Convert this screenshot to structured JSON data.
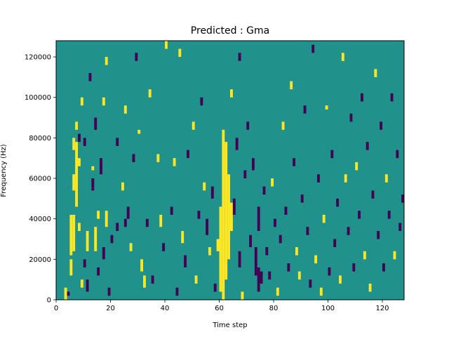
{
  "chart_data": {
    "type": "heatmap",
    "title": "Predicted : Gma",
    "xlabel": "Time step",
    "ylabel": "Frequency (Hz)",
    "xlim": [
      0,
      128
    ],
    "ylim": [
      0,
      128000
    ],
    "x_ticks": [
      0,
      20,
      40,
      60,
      80,
      100,
      120
    ],
    "x_tick_labels": [
      "0",
      "20",
      "40",
      "60",
      "80",
      "100",
      "120"
    ],
    "y_ticks": [
      0,
      20000,
      40000,
      60000,
      80000,
      100000,
      120000
    ],
    "y_tick_labels": [
      "0",
      "20000",
      "40000",
      "60000",
      "80000",
      "100000",
      "120000"
    ],
    "grid": false,
    "colormap": "viridis",
    "background_value": 0,
    "n_time_steps": 128,
    "n_freq_bins": 64,
    "freq_bin_hz": 2000,
    "colors": {
      "low": "#440154",
      "mid": "#21918c",
      "high": "#fde725"
    },
    "cells": [
      {
        "t": 3,
        "f0": 0,
        "f1": 6000,
        "v": 1
      },
      {
        "t": 4,
        "f0": 2000,
        "f1": 4000,
        "v": -1
      },
      {
        "t": 5,
        "f0": 12000,
        "f1": 20000,
        "v": 1
      },
      {
        "t": 5,
        "f0": 22000,
        "f1": 42000,
        "v": 1
      },
      {
        "t": 6,
        "f0": 24000,
        "f1": 42000,
        "v": 1
      },
      {
        "t": 6,
        "f0": 54000,
        "f1": 62000,
        "v": 1
      },
      {
        "t": 6,
        "f0": 74000,
        "f1": 80000,
        "v": 1
      },
      {
        "t": 7,
        "f0": 46000,
        "f1": 78000,
        "v": 1
      },
      {
        "t": 7,
        "f0": 84000,
        "f1": 88000,
        "v": 1
      },
      {
        "t": 8,
        "f0": 34000,
        "f1": 38000,
        "v": 1
      },
      {
        "t": 8,
        "f0": 66000,
        "f1": 70000,
        "v": 1
      },
      {
        "t": 8,
        "f0": 78000,
        "f1": 82000,
        "v": -1
      },
      {
        "t": 9,
        "f0": 6000,
        "f1": 10000,
        "v": 1
      },
      {
        "t": 9,
        "f0": 96000,
        "f1": 100000,
        "v": 1
      },
      {
        "t": 10,
        "f0": 76000,
        "f1": 80000,
        "v": -1
      },
      {
        "t": 10,
        "f0": 16000,
        "f1": 20000,
        "v": -1
      },
      {
        "t": 11,
        "f0": 4000,
        "f1": 10000,
        "v": -1
      },
      {
        "t": 11,
        "f0": 24000,
        "f1": 34000,
        "v": 1
      },
      {
        "t": 12,
        "f0": 108000,
        "f1": 112000,
        "v": -1
      },
      {
        "t": 13,
        "f0": 54000,
        "f1": 60000,
        "v": -1
      },
      {
        "t": 13,
        "f0": 64000,
        "f1": 66000,
        "v": 1
      },
      {
        "t": 14,
        "f0": 84000,
        "f1": 90000,
        "v": -1
      },
      {
        "t": 14,
        "f0": 24000,
        "f1": 36000,
        "v": 1
      },
      {
        "t": 15,
        "f0": 12000,
        "f1": 16000,
        "v": -1
      },
      {
        "t": 15,
        "f0": 40000,
        "f1": 44000,
        "v": 1
      },
      {
        "t": 16,
        "f0": 62000,
        "f1": 70000,
        "v": -1
      },
      {
        "t": 17,
        "f0": 20000,
        "f1": 26000,
        "v": -1
      },
      {
        "t": 17,
        "f0": 96000,
        "f1": 100000,
        "v": 1
      },
      {
        "t": 18,
        "f0": 36000,
        "f1": 44000,
        "v": 1
      },
      {
        "t": 18,
        "f0": 116000,
        "f1": 120000,
        "v": 1
      },
      {
        "t": 19,
        "f0": 2000,
        "f1": 6000,
        "v": -1
      },
      {
        "t": 20,
        "f0": 28000,
        "f1": 32000,
        "v": -1
      },
      {
        "t": 22,
        "f0": 34000,
        "f1": 38000,
        "v": -1
      },
      {
        "t": 22,
        "f0": 76000,
        "f1": 80000,
        "v": -1
      },
      {
        "t": 24,
        "f0": 54000,
        "f1": 58000,
        "v": 1
      },
      {
        "t": 25,
        "f0": 36000,
        "f1": 40000,
        "v": -1
      },
      {
        "t": 25,
        "f0": 92000,
        "f1": 96000,
        "v": 1
      },
      {
        "t": 26,
        "f0": 40000,
        "f1": 46000,
        "v": -1
      },
      {
        "t": 27,
        "f0": 24000,
        "f1": 28000,
        "v": 1
      },
      {
        "t": 28,
        "f0": 68000,
        "f1": 72000,
        "v": -1
      },
      {
        "t": 29,
        "f0": 118000,
        "f1": 122000,
        "v": -1
      },
      {
        "t": 30,
        "f0": 82000,
        "f1": 84000,
        "v": 1
      },
      {
        "t": 31,
        "f0": 14000,
        "f1": 20000,
        "v": 1
      },
      {
        "t": 32,
        "f0": 6000,
        "f1": 12000,
        "v": 1
      },
      {
        "t": 33,
        "f0": 36000,
        "f1": 40000,
        "v": -1
      },
      {
        "t": 34,
        "f0": 100000,
        "f1": 104000,
        "v": 1
      },
      {
        "t": 35,
        "f0": 8000,
        "f1": 12000,
        "v": -1
      },
      {
        "t": 37,
        "f0": 68000,
        "f1": 72000,
        "v": 1
      },
      {
        "t": 38,
        "f0": 36000,
        "f1": 42000,
        "v": 1
      },
      {
        "t": 39,
        "f0": 24000,
        "f1": 28000,
        "v": -1
      },
      {
        "t": 40,
        "f0": 124000,
        "f1": 128000,
        "v": 1
      },
      {
        "t": 42,
        "f0": 42000,
        "f1": 46000,
        "v": -1
      },
      {
        "t": 43,
        "f0": 66000,
        "f1": 70000,
        "v": 1
      },
      {
        "t": 44,
        "f0": 2000,
        "f1": 6000,
        "v": -1
      },
      {
        "t": 45,
        "f0": 120000,
        "f1": 124000,
        "v": 1
      },
      {
        "t": 46,
        "f0": 28000,
        "f1": 34000,
        "v": 1
      },
      {
        "t": 47,
        "f0": 16000,
        "f1": 22000,
        "v": -1
      },
      {
        "t": 48,
        "f0": 70000,
        "f1": 74000,
        "v": -1
      },
      {
        "t": 50,
        "f0": 84000,
        "f1": 88000,
        "v": 1
      },
      {
        "t": 51,
        "f0": 8000,
        "f1": 12000,
        "v": 1
      },
      {
        "t": 52,
        "f0": 40000,
        "f1": 44000,
        "v": -1
      },
      {
        "t": 53,
        "f0": 96000,
        "f1": 100000,
        "v": -1
      },
      {
        "t": 54,
        "f0": 54000,
        "f1": 58000,
        "v": 1
      },
      {
        "t": 55,
        "f0": 32000,
        "f1": 40000,
        "v": -1
      },
      {
        "t": 56,
        "f0": 22000,
        "f1": 26000,
        "v": 1
      },
      {
        "t": 57,
        "f0": 50000,
        "f1": 56000,
        "v": -1
      },
      {
        "t": 58,
        "f0": 4000,
        "f1": 8000,
        "v": -1
      },
      {
        "t": 59,
        "f0": 24000,
        "f1": 30000,
        "v": 1
      },
      {
        "t": 60,
        "f0": 4000,
        "f1": 46000,
        "v": 1
      },
      {
        "t": 61,
        "f0": 0,
        "f1": 84000,
        "v": 1
      },
      {
        "t": 62,
        "f0": 10000,
        "f1": 78000,
        "v": 1
      },
      {
        "t": 63,
        "f0": 20000,
        "f1": 62000,
        "v": 1
      },
      {
        "t": 64,
        "f0": 34000,
        "f1": 48000,
        "v": 1
      },
      {
        "t": 64,
        "f0": 100000,
        "f1": 104000,
        "v": 1
      },
      {
        "t": 65,
        "f0": 42000,
        "f1": 50000,
        "v": -1
      },
      {
        "t": 66,
        "f0": 74000,
        "f1": 80000,
        "v": -1
      },
      {
        "t": 67,
        "f0": 16000,
        "f1": 24000,
        "v": -1
      },
      {
        "t": 67,
        "f0": 118000,
        "f1": 122000,
        "v": -1
      },
      {
        "t": 68,
        "f0": 0,
        "f1": 4000,
        "v": 1
      },
      {
        "t": 69,
        "f0": 60000,
        "f1": 64000,
        "v": -1
      },
      {
        "t": 70,
        "f0": 84000,
        "f1": 88000,
        "v": -1
      },
      {
        "t": 71,
        "f0": 26000,
        "f1": 32000,
        "v": -1
      },
      {
        "t": 72,
        "f0": 64000,
        "f1": 70000,
        "v": -1
      },
      {
        "t": 73,
        "f0": 12000,
        "f1": 26000,
        "v": -1
      },
      {
        "t": 74,
        "f0": 4000,
        "f1": 16000,
        "v": -1
      },
      {
        "t": 74,
        "f0": 34000,
        "f1": 46000,
        "v": -1
      },
      {
        "t": 75,
        "f0": 8000,
        "f1": 14000,
        "v": -1
      },
      {
        "t": 76,
        "f0": 52000,
        "f1": 56000,
        "v": -1
      },
      {
        "t": 77,
        "f0": 22000,
        "f1": 26000,
        "v": -1
      },
      {
        "t": 78,
        "f0": 10000,
        "f1": 14000,
        "v": -1
      },
      {
        "t": 79,
        "f0": 56000,
        "f1": 60000,
        "v": 1
      },
      {
        "t": 80,
        "f0": 36000,
        "f1": 40000,
        "v": -1
      },
      {
        "t": 81,
        "f0": 2000,
        "f1": 6000,
        "v": 1
      },
      {
        "t": 82,
        "f0": 28000,
        "f1": 32000,
        "v": -1
      },
      {
        "t": 83,
        "f0": 84000,
        "f1": 88000,
        "v": 1
      },
      {
        "t": 84,
        "f0": 42000,
        "f1": 46000,
        "v": -1
      },
      {
        "t": 85,
        "f0": 14000,
        "f1": 18000,
        "v": -1
      },
      {
        "t": 86,
        "f0": 104000,
        "f1": 108000,
        "v": 1
      },
      {
        "t": 87,
        "f0": 66000,
        "f1": 70000,
        "v": -1
      },
      {
        "t": 88,
        "f0": 22000,
        "f1": 26000,
        "v": 1
      },
      {
        "t": 89,
        "f0": 10000,
        "f1": 14000,
        "v": 1
      },
      {
        "t": 90,
        "f0": 48000,
        "f1": 52000,
        "v": -1
      },
      {
        "t": 91,
        "f0": 92000,
        "f1": 96000,
        "v": -1
      },
      {
        "t": 92,
        "f0": 32000,
        "f1": 36000,
        "v": -1
      },
      {
        "t": 93,
        "f0": 6000,
        "f1": 10000,
        "v": -1
      },
      {
        "t": 94,
        "f0": 122000,
        "f1": 126000,
        "v": -1
      },
      {
        "t": 95,
        "f0": 18000,
        "f1": 22000,
        "v": 1
      },
      {
        "t": 96,
        "f0": 58000,
        "f1": 62000,
        "v": -1
      },
      {
        "t": 97,
        "f0": 2000,
        "f1": 6000,
        "v": 1
      },
      {
        "t": 98,
        "f0": 38000,
        "f1": 42000,
        "v": 1
      },
      {
        "t": 99,
        "f0": 94000,
        "f1": 96000,
        "v": 1
      },
      {
        "t": 100,
        "f0": 12000,
        "f1": 16000,
        "v": -1
      },
      {
        "t": 101,
        "f0": 70000,
        "f1": 74000,
        "v": -1
      },
      {
        "t": 102,
        "f0": 26000,
        "f1": 30000,
        "v": -1
      },
      {
        "t": 103,
        "f0": 46000,
        "f1": 50000,
        "v": -1
      },
      {
        "t": 104,
        "f0": 8000,
        "f1": 12000,
        "v": 1
      },
      {
        "t": 105,
        "f0": 118000,
        "f1": 122000,
        "v": 1
      },
      {
        "t": 106,
        "f0": 58000,
        "f1": 62000,
        "v": 1
      },
      {
        "t": 107,
        "f0": 32000,
        "f1": 36000,
        "v": -1
      },
      {
        "t": 108,
        "f0": 88000,
        "f1": 92000,
        "v": -1
      },
      {
        "t": 109,
        "f0": 14000,
        "f1": 18000,
        "v": -1
      },
      {
        "t": 110,
        "f0": 64000,
        "f1": 68000,
        "v": 1
      },
      {
        "t": 111,
        "f0": 40000,
        "f1": 44000,
        "v": -1
      },
      {
        "t": 112,
        "f0": 98000,
        "f1": 102000,
        "v": -1
      },
      {
        "t": 113,
        "f0": 20000,
        "f1": 24000,
        "v": 1
      },
      {
        "t": 114,
        "f0": 74000,
        "f1": 78000,
        "v": -1
      },
      {
        "t": 115,
        "f0": 4000,
        "f1": 8000,
        "v": 1
      },
      {
        "t": 116,
        "f0": 50000,
        "f1": 54000,
        "v": -1
      },
      {
        "t": 117,
        "f0": 110000,
        "f1": 114000,
        "v": 1
      },
      {
        "t": 118,
        "f0": 30000,
        "f1": 34000,
        "v": -1
      },
      {
        "t": 119,
        "f0": 84000,
        "f1": 88000,
        "v": -1
      },
      {
        "t": 120,
        "f0": 14000,
        "f1": 18000,
        "v": -1
      },
      {
        "t": 121,
        "f0": 58000,
        "f1": 62000,
        "v": 1
      },
      {
        "t": 122,
        "f0": 40000,
        "f1": 44000,
        "v": -1
      },
      {
        "t": 123,
        "f0": 98000,
        "f1": 102000,
        "v": -1
      },
      {
        "t": 124,
        "f0": 20000,
        "f1": 24000,
        "v": 1
      },
      {
        "t": 125,
        "f0": 70000,
        "f1": 74000,
        "v": -1
      },
      {
        "t": 126,
        "f0": 34000,
        "f1": 38000,
        "v": -1
      },
      {
        "t": 127,
        "f0": 48000,
        "f1": 52000,
        "v": -1
      }
    ]
  }
}
